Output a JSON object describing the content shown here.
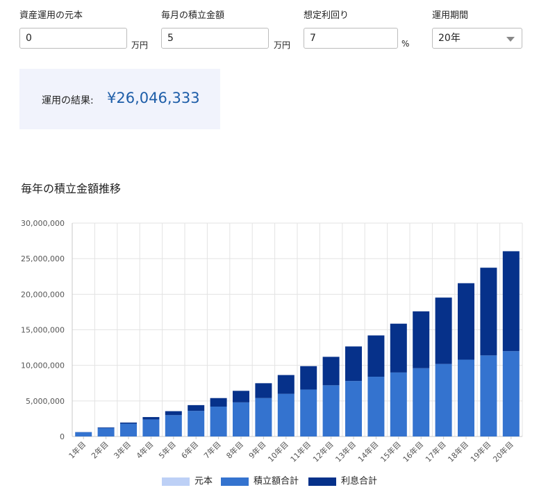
{
  "form": {
    "principal": {
      "label": "資産運用の元本",
      "value": "0",
      "unit": "万円"
    },
    "monthly": {
      "label": "毎月の積立金額",
      "value": "5",
      "unit": "万円"
    },
    "rate": {
      "label": "想定利回り",
      "value": "7",
      "unit": "%"
    },
    "period": {
      "label": "運用期間",
      "value": "20年",
      "icon": "chevron-down-icon"
    }
  },
  "result": {
    "label": "運用の結果:",
    "value": "¥26,046,333"
  },
  "chart_title": "毎年の積立金額推移",
  "colors": {
    "principal": "#bdd0f6",
    "contributions": "#3473cf",
    "interest": "#06318a",
    "grid": "#e3e3e3",
    "accent": "#1d5da8"
  },
  "chart_data": {
    "type": "bar",
    "stacked": true,
    "categories": [
      "1年目",
      "2年目",
      "3年目",
      "4年目",
      "5年目",
      "6年目",
      "7年目",
      "8年目",
      "9年目",
      "10年目",
      "11年目",
      "12年目",
      "13年目",
      "14年目",
      "15年目",
      "16年目",
      "17年目",
      "18年目",
      "19年目",
      "20年目"
    ],
    "series": [
      {
        "name": "元本",
        "values": [
          0,
          0,
          0,
          0,
          0,
          0,
          0,
          0,
          0,
          0,
          0,
          0,
          0,
          0,
          0,
          0,
          0,
          0,
          0,
          0
        ]
      },
      {
        "name": "積立額合計",
        "values": [
          600000,
          1200000,
          1800000,
          2400000,
          3000000,
          3600000,
          4200000,
          4800000,
          5400000,
          6000000,
          6600000,
          7200000,
          7800000,
          8400000,
          9000000,
          9600000,
          10200000,
          10800000,
          11400000,
          12000000
        ]
      },
      {
        "name": "利息合計",
        "values": [
          20000,
          80000,
          160000,
          330000,
          560000,
          810000,
          1200000,
          1620000,
          2090000,
          2640000,
          3290000,
          4000000,
          4860000,
          5810000,
          6860000,
          7990000,
          9330000,
          10750000,
          12330000,
          14046333
        ]
      }
    ],
    "ylim": [
      0,
      30000000
    ],
    "yticks": [
      "0",
      "5,000,000",
      "10,000,000",
      "15,000,000",
      "20,000,000",
      "25,000,000",
      "30,000,000"
    ],
    "ytick_values": [
      0,
      5000000,
      10000000,
      15000000,
      20000000,
      25000000,
      30000000
    ],
    "grid": true,
    "legend": "bottom"
  }
}
